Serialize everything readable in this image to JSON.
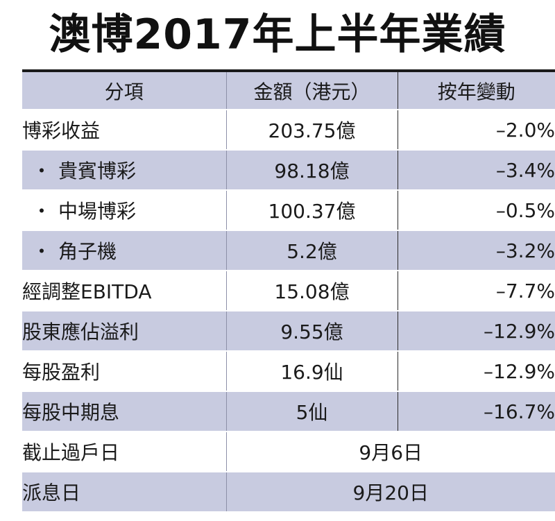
{
  "title": "澳博2017年上半年業績",
  "headers": {
    "item": "分項",
    "amount": "金額（港元）",
    "change": "按年變動"
  },
  "rows": [
    {
      "label": "博彩收益",
      "sub": false,
      "amount": "203.75億",
      "change": "–2.0%"
    },
    {
      "label": "貴賓博彩",
      "sub": true,
      "amount": "98.18億",
      "change": "–3.4%"
    },
    {
      "label": "中場博彩",
      "sub": true,
      "amount": "100.37億",
      "change": "–0.5%"
    },
    {
      "label": "角子機",
      "sub": true,
      "amount": "5.2億",
      "change": "–3.2%"
    },
    {
      "label": "經調整EBITDA",
      "sub": false,
      "amount": "15.08億",
      "change": "–7.7%"
    },
    {
      "label": "股東應佔溢利",
      "sub": false,
      "amount": "9.55億",
      "change": "–12.9%"
    },
    {
      "label": "每股盈利",
      "sub": false,
      "amount": "16.9仙",
      "change": "–12.9%"
    },
    {
      "label": "每股中期息",
      "sub": false,
      "amount": "5仙",
      "change": "–16.7%"
    }
  ],
  "dates": [
    {
      "label": "截止過戶日",
      "value": "9月6日"
    },
    {
      "label": "派息日",
      "value": "9月20日"
    }
  ],
  "bullet": "・",
  "colors": {
    "band": "#c8cbe0",
    "text": "#1a1a1a"
  }
}
